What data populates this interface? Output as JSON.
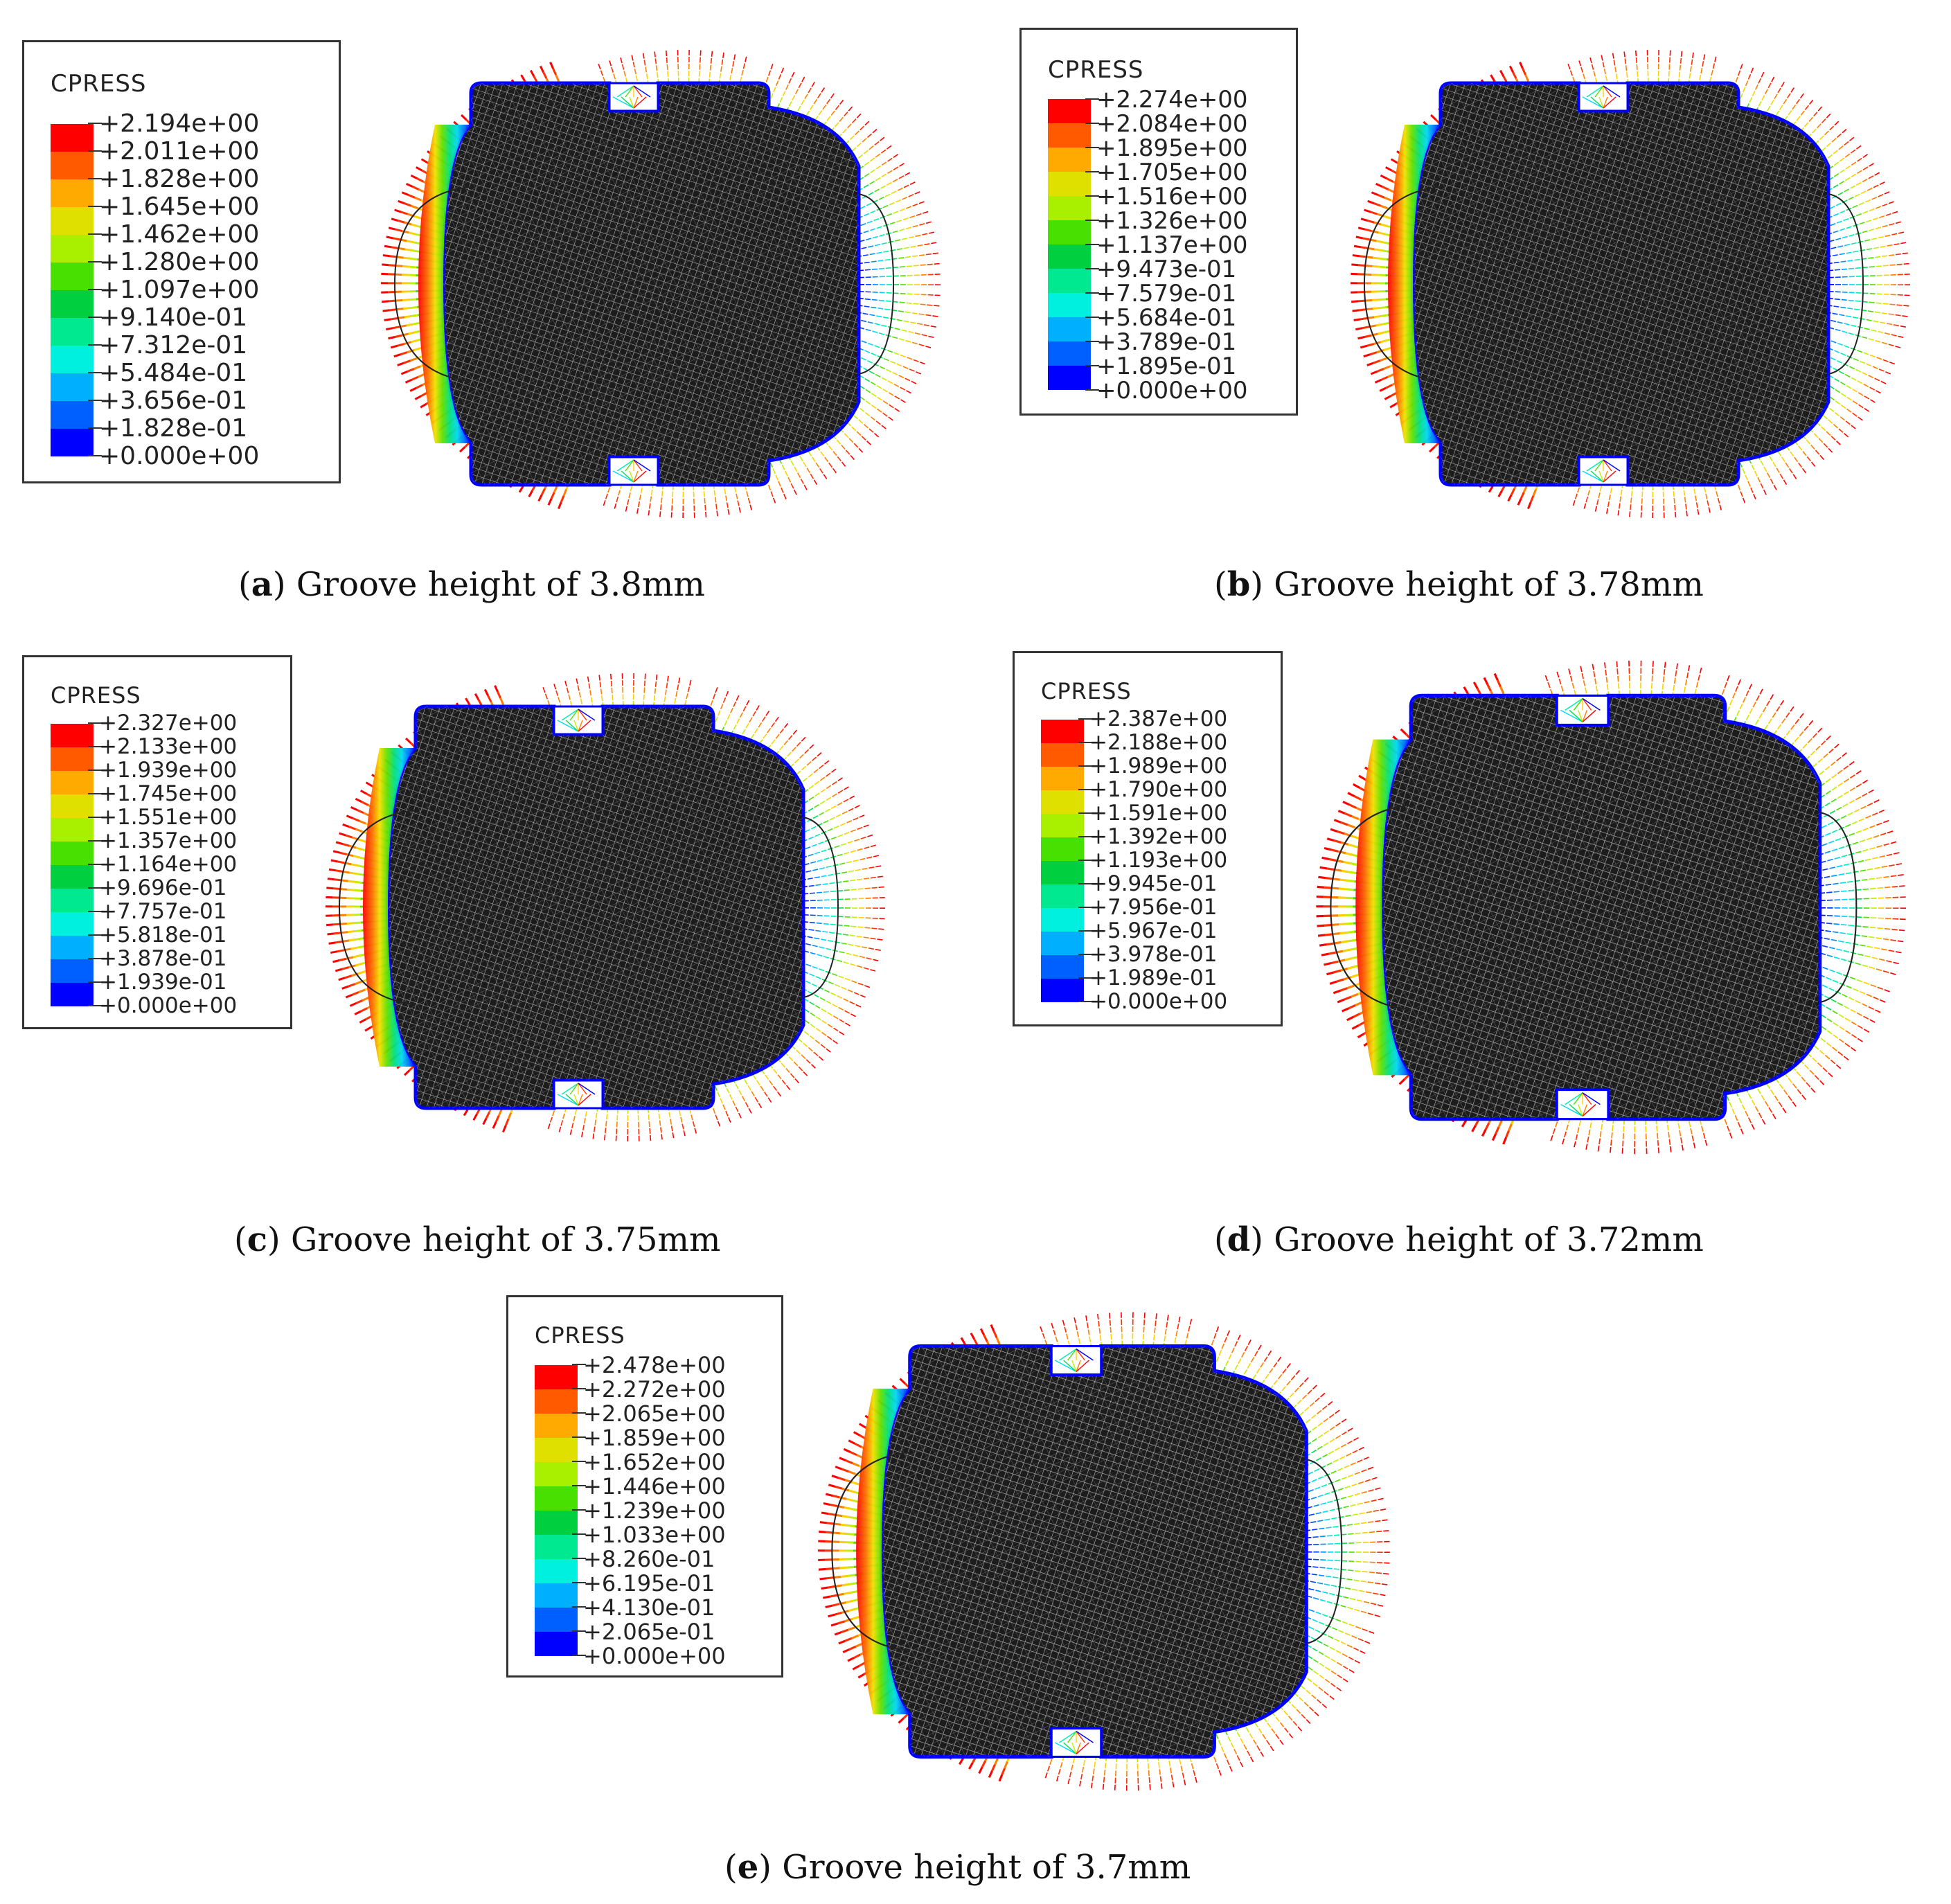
{
  "colors": [
    "#ff0000",
    "#ff5a00",
    "#ffaa00",
    "#e0e000",
    "#a8f000",
    "#48e000",
    "#00d040",
    "#00e890",
    "#00f0e0",
    "#00b0ff",
    "#0060ff",
    "#0000ff"
  ],
  "panels": [
    {
      "id": "a",
      "letter": "a",
      "caption": "Groove height of 3.8mm",
      "legend_title": "CPRESS",
      "values": [
        "+2.194e+00",
        "+2.011e+00",
        "+1.828e+00",
        "+1.645e+00",
        "+1.462e+00",
        "+1.280e+00",
        "+1.097e+00",
        "+9.140e-01",
        "+7.312e-01",
        "+5.484e-01",
        "+3.656e-01",
        "+1.828e-01",
        "+0.000e+00"
      ]
    },
    {
      "id": "b",
      "letter": "b",
      "caption": "Groove height of 3.78mm",
      "legend_title": "CPRESS",
      "values": [
        "+2.274e+00",
        "+2.084e+00",
        "+1.895e+00",
        "+1.705e+00",
        "+1.516e+00",
        "+1.326e+00",
        "+1.137e+00",
        "+9.473e-01",
        "+7.579e-01",
        "+5.684e-01",
        "+3.789e-01",
        "+1.895e-01",
        "+0.000e+00"
      ]
    },
    {
      "id": "c",
      "letter": "c",
      "caption": "Groove height of 3.75mm",
      "legend_title": "CPRESS",
      "values": [
        "+2.327e+00",
        "+2.133e+00",
        "+1.939e+00",
        "+1.745e+00",
        "+1.551e+00",
        "+1.357e+00",
        "+1.164e+00",
        "+9.696e-01",
        "+7.757e-01",
        "+5.818e-01",
        "+3.878e-01",
        "+1.939e-01",
        "+0.000e+00"
      ]
    },
    {
      "id": "d",
      "letter": "d",
      "caption": "Groove height of 3.72mm",
      "legend_title": "CPRESS",
      "values": [
        "+2.387e+00",
        "+2.188e+00",
        "+1.989e+00",
        "+1.790e+00",
        "+1.591e+00",
        "+1.392e+00",
        "+1.193e+00",
        "+9.945e-01",
        "+7.956e-01",
        "+5.967e-01",
        "+3.978e-01",
        "+1.989e-01",
        "+0.000e+00"
      ]
    },
    {
      "id": "e",
      "letter": "e",
      "caption": "Groove height of 3.7mm",
      "legend_title": "CPRESS",
      "values": [
        "+2.478e+00",
        "+2.272e+00",
        "+2.065e+00",
        "+1.859e+00",
        "+1.652e+00",
        "+1.446e+00",
        "+1.239e+00",
        "+1.033e+00",
        "+8.260e-01",
        "+6.195e-01",
        "+4.130e-01",
        "+2.065e-01",
        "+0.000e+00"
      ]
    }
  ]
}
